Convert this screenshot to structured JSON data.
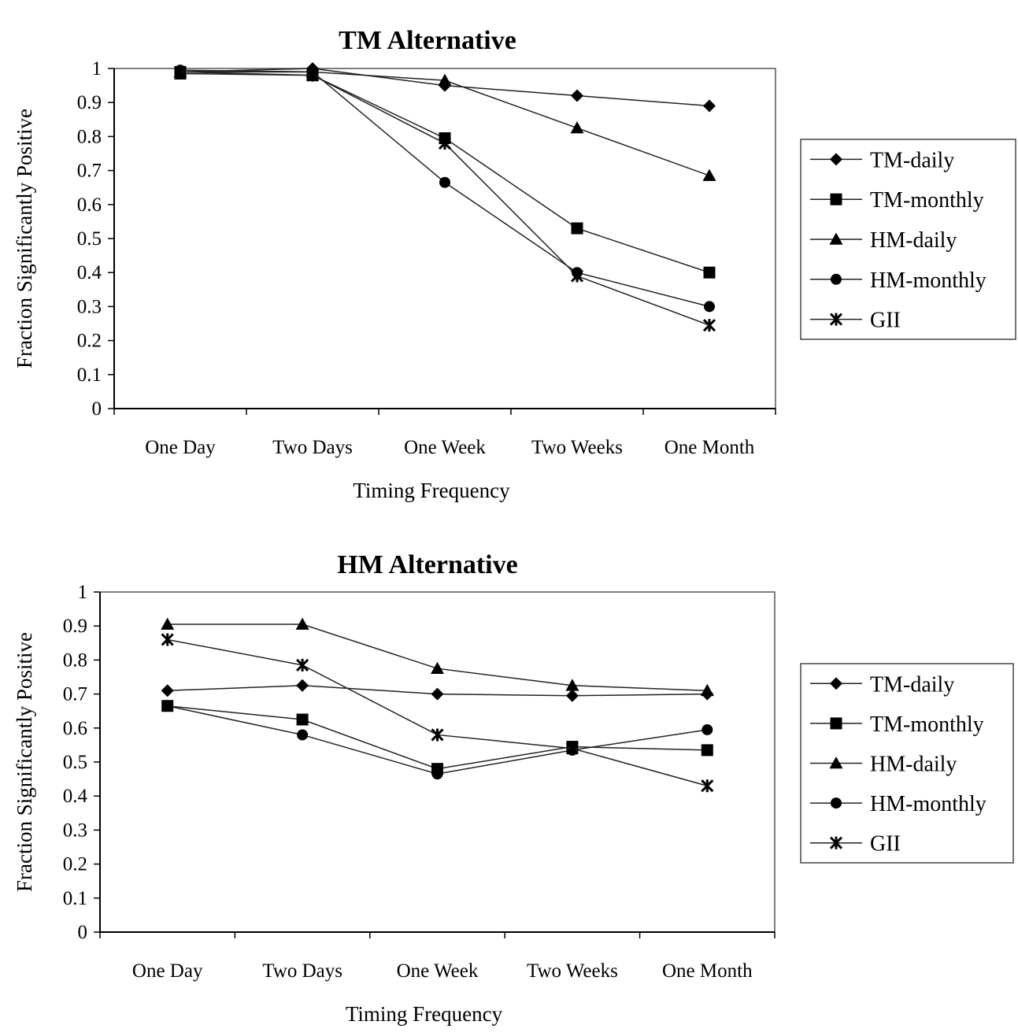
{
  "chart_data": [
    {
      "type": "line",
      "title": "TM Alternative",
      "xlabel": "Timing Frequency",
      "ylabel": "Fraction Significantly Positive",
      "categories": [
        "One Day",
        "Two Days",
        "One Week",
        "Two Weeks",
        "One Month"
      ],
      "ylim": [
        0,
        1
      ],
      "yticks": [
        "0",
        "0.1",
        "0.2",
        "0.3",
        "0.4",
        "0.5",
        "0.6",
        "0.7",
        "0.8",
        "0.9",
        "1"
      ],
      "legend": "right",
      "grid": false,
      "series": [
        {
          "name": "TM-daily",
          "marker": "diamond",
          "values": [
            0.99,
            1.0,
            0.95,
            0.92,
            0.89
          ]
        },
        {
          "name": "TM-monthly",
          "marker": "square",
          "values": [
            0.985,
            0.98,
            0.795,
            0.53,
            0.4
          ]
        },
        {
          "name": "HM-daily",
          "marker": "triangle",
          "values": [
            0.99,
            0.99,
            0.965,
            0.825,
            0.685
          ]
        },
        {
          "name": "HM-monthly",
          "marker": "circle",
          "values": [
            0.995,
            0.99,
            0.665,
            0.4,
            0.3
          ]
        },
        {
          "name": "GII",
          "marker": "star",
          "values": [
            0.99,
            0.98,
            0.78,
            0.39,
            0.245
          ]
        }
      ]
    },
    {
      "type": "line",
      "title": "HM Alternative",
      "xlabel": "Timing Frequency",
      "ylabel": "Fraction Significantly Positive",
      "categories": [
        "One Day",
        "Two Days",
        "One Week",
        "Two Weeks",
        "One Month"
      ],
      "ylim": [
        0,
        1
      ],
      "yticks": [
        "0",
        "0.1",
        "0.2",
        "0.3",
        "0.4",
        "0.5",
        "0.6",
        "0.7",
        "0.8",
        "0.9",
        "1"
      ],
      "legend": "right",
      "grid": false,
      "series": [
        {
          "name": "TM-daily",
          "marker": "diamond",
          "values": [
            0.71,
            0.725,
            0.7,
            0.695,
            0.7
          ]
        },
        {
          "name": "TM-monthly",
          "marker": "square",
          "values": [
            0.665,
            0.625,
            0.48,
            0.545,
            0.535
          ]
        },
        {
          "name": "HM-daily",
          "marker": "triangle",
          "values": [
            0.905,
            0.905,
            0.775,
            0.725,
            0.71
          ]
        },
        {
          "name": "HM-monthly",
          "marker": "circle",
          "values": [
            0.665,
            0.58,
            0.465,
            0.535,
            0.595
          ]
        },
        {
          "name": "GII",
          "marker": "star",
          "values": [
            0.86,
            0.785,
            0.58,
            0.54,
            0.43
          ]
        }
      ]
    }
  ]
}
